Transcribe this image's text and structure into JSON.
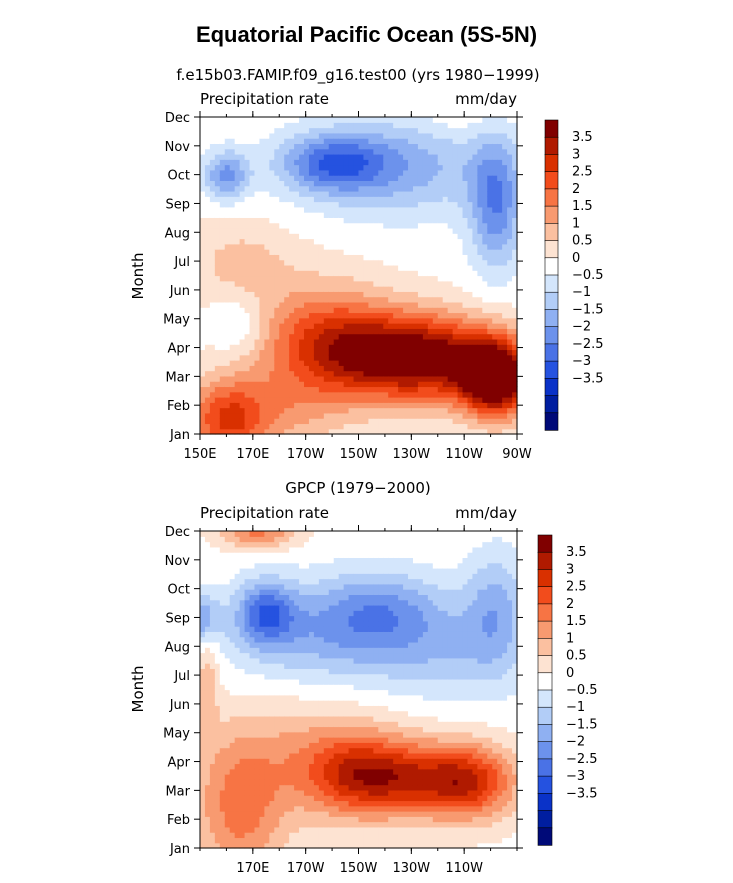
{
  "title": "Equatorial Pacific Ocean (5S-5N)",
  "colorbar": {
    "levels": [
      "3.5",
      "3",
      "2.5",
      "2",
      "1.5",
      "1",
      "0.5",
      "0",
      "−0.5",
      "−1",
      "−1.5",
      "−2",
      "−2.5",
      "−3",
      "−3.5"
    ],
    "colors": [
      "#800000",
      "#b01a00",
      "#d93000",
      "#f24c1c",
      "#f77444",
      "#f89a70",
      "#fbc0a0",
      "#fde3d2",
      "#ffffff",
      "#d4e6fc",
      "#b2cdf7",
      "#8fb0f2",
      "#6c92ec",
      "#4a72e6",
      "#2552e0",
      "#0a32c8",
      "#001ea0",
      "#000a78"
    ]
  },
  "chart_data": [
    {
      "type": "heatmap",
      "title": "f.e15b03.FAMIP.f09_g16.test00 (yrs 1980−1999)",
      "left_label": "Precipitation rate",
      "right_label": "mm/day",
      "ylabel": "Month",
      "xlabel": "",
      "y_ticks": [
        "Jan",
        "Feb",
        "Mar",
        "Apr",
        "May",
        "Jun",
        "Jul",
        "Aug",
        "Sep",
        "Oct",
        "Nov",
        "Dec"
      ],
      "x_tick_labels": [
        "150E",
        "170E",
        "170W",
        "150W",
        "130W",
        "110W",
        "90W"
      ],
      "xlim_lon": [
        150,
        270
      ],
      "ylim_month": [
        1,
        12
      ],
      "features": [
        {
          "lon": 262,
          "month": 2.9,
          "amp": 4.5,
          "sx": 9,
          "sy": 0.9
        },
        {
          "lon": 240,
          "month": 3.6,
          "amp": 3.0,
          "sx": 20,
          "sy": 1.0
        },
        {
          "lon": 215,
          "month": 3.8,
          "amp": 2.4,
          "sx": 22,
          "sy": 1.1
        },
        {
          "lon": 195,
          "month": 4.5,
          "amp": 1.6,
          "sx": 18,
          "sy": 1.4
        },
        {
          "lon": 160,
          "month": 1.4,
          "amp": 2.0,
          "sx": 10,
          "sy": 1.0
        },
        {
          "lon": 175,
          "month": 1.8,
          "amp": 1.2,
          "sx": 20,
          "sy": 1.0
        },
        {
          "lon": 165,
          "month": 7.0,
          "amp": 0.8,
          "sx": 14,
          "sy": 1.0
        },
        {
          "lon": 200,
          "month": 10.4,
          "amp": -2.2,
          "sx": 14,
          "sy": 0.7
        },
        {
          "lon": 160,
          "month": 10.0,
          "amp": -2.0,
          "sx": 6,
          "sy": 0.6
        },
        {
          "lon": 262,
          "month": 9.0,
          "amp": -2.2,
          "sx": 7,
          "sy": 1.6
        },
        {
          "lon": 225,
          "month": 10.3,
          "amp": -1.6,
          "sx": 25,
          "sy": 1.2
        },
        {
          "lon": 165,
          "month": 4.8,
          "amp": -0.8,
          "sx": 7,
          "sy": 0.7
        },
        {
          "lon": 250,
          "month": 11.9,
          "amp": 0.3,
          "sx": 14,
          "sy": 0.5
        }
      ]
    },
    {
      "type": "heatmap",
      "title": "GPCP (1979−2000)",
      "left_label": "Precipitation rate",
      "right_label": "mm/day",
      "ylabel": "Month",
      "xlabel": "",
      "y_ticks": [
        "Jan",
        "Feb",
        "Mar",
        "Apr",
        "May",
        "Jun",
        "Jul",
        "Aug",
        "Sep",
        "Oct",
        "Nov",
        "Dec"
      ],
      "x_tick_labels": [
        "170E",
        "170W",
        "150W",
        "130W",
        "110W"
      ],
      "xlim_lon": [
        150,
        270
      ],
      "ylim_month": [
        1,
        12
      ],
      "features": [
        {
          "lon": 230,
          "month": 3.4,
          "amp": 2.4,
          "sx": 18,
          "sy": 0.9
        },
        {
          "lon": 253,
          "month": 3.3,
          "amp": 2.3,
          "sx": 12,
          "sy": 0.9
        },
        {
          "lon": 208,
          "month": 3.6,
          "amp": 1.8,
          "sx": 14,
          "sy": 1.0
        },
        {
          "lon": 165,
          "month": 2.2,
          "amp": 1.7,
          "sx": 12,
          "sy": 1.8
        },
        {
          "lon": 190,
          "month": 4.2,
          "amp": 1.0,
          "sx": 25,
          "sy": 1.5
        },
        {
          "lon": 172,
          "month": 12.0,
          "amp": 1.8,
          "sx": 10,
          "sy": 0.4
        },
        {
          "lon": 175,
          "month": 9.2,
          "amp": -2.3,
          "sx": 8,
          "sy": 0.8
        },
        {
          "lon": 150,
          "month": 9.0,
          "amp": -1.8,
          "sx": 5,
          "sy": 0.6
        },
        {
          "lon": 218,
          "month": 9.3,
          "amp": -1.6,
          "sx": 18,
          "sy": 1.0
        },
        {
          "lon": 262,
          "month": 9.4,
          "amp": -1.4,
          "sx": 8,
          "sy": 1.4
        },
        {
          "lon": 195,
          "month": 8.3,
          "amp": -1.3,
          "sx": 25,
          "sy": 1.2
        },
        {
          "lon": 245,
          "month": 7.8,
          "amp": -1.0,
          "sx": 22,
          "sy": 1.2
        },
        {
          "lon": 153,
          "month": 7.0,
          "amp": 1.0,
          "sx": 3,
          "sy": 1.2
        }
      ]
    }
  ]
}
